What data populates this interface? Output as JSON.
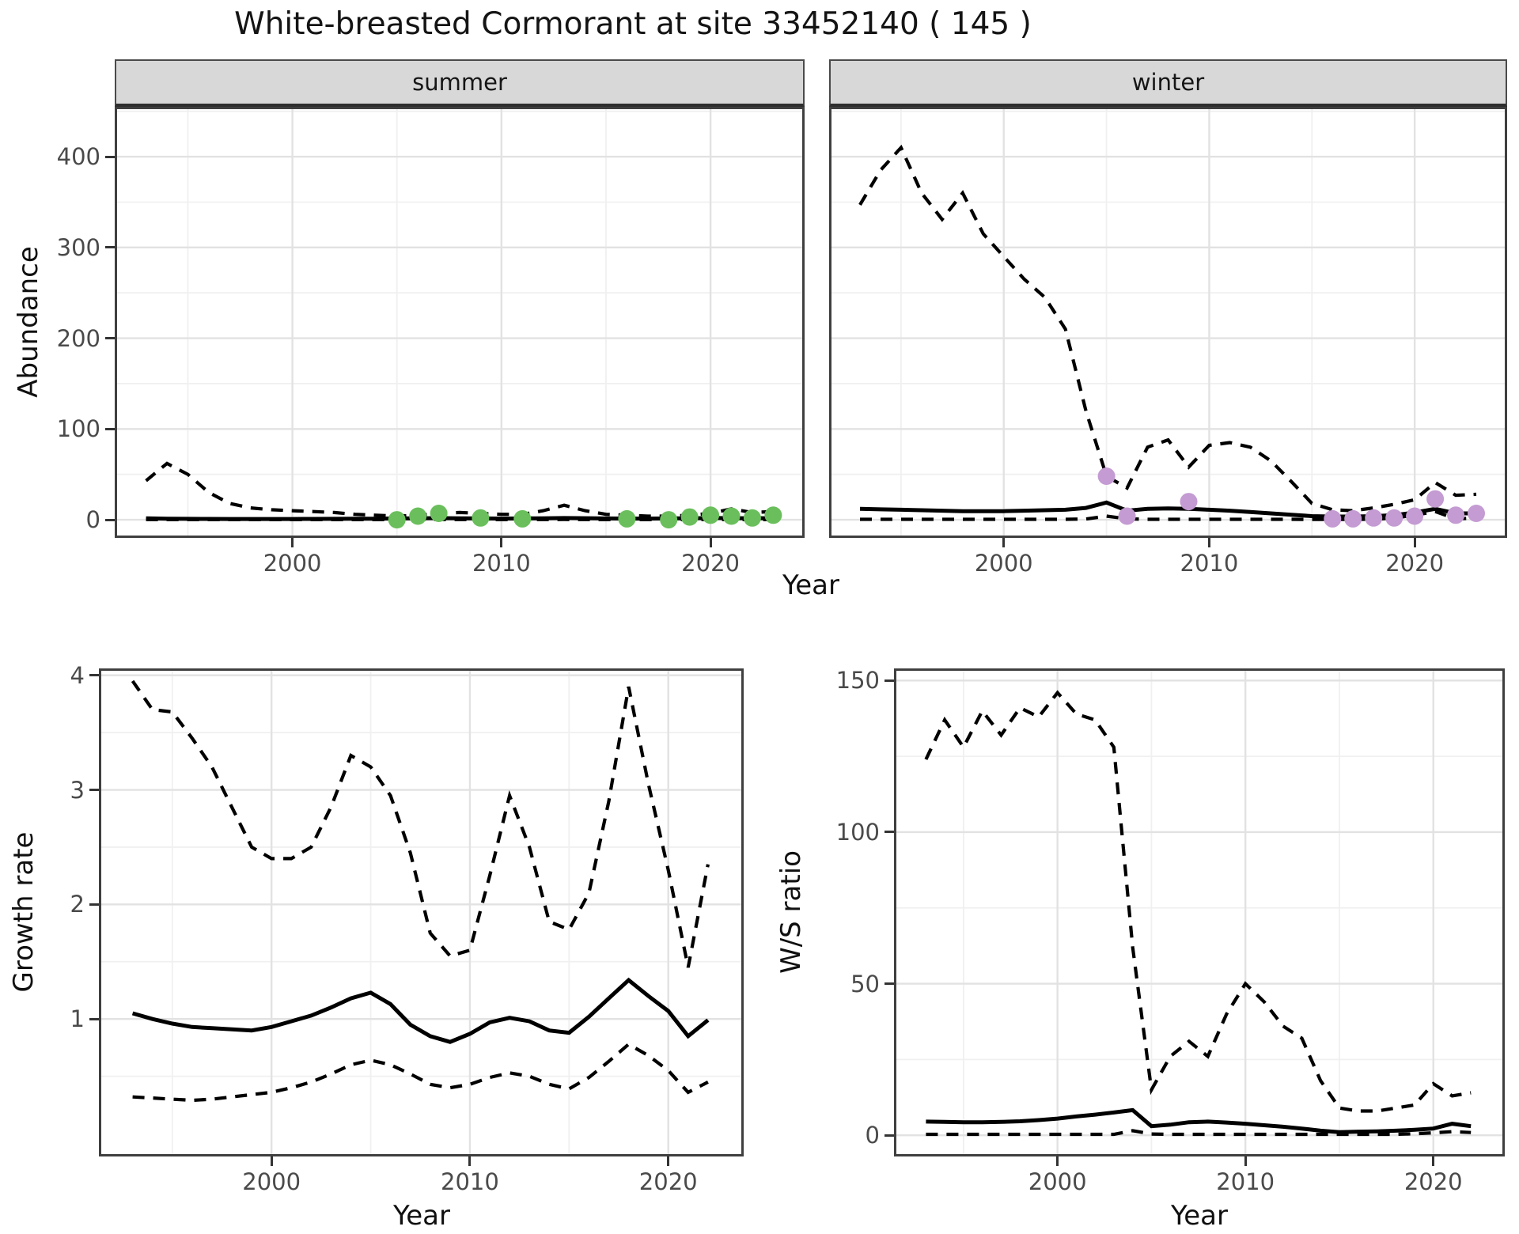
{
  "title": "White-breasted Cormorant at site 33452140 ( 145 )",
  "colors": {
    "summer_points": "#6abf5c",
    "winter_points": "#c49bd2",
    "line": "#000000",
    "strip_bg": "#d8d8d8",
    "grid_major": "#e2e2e2",
    "grid_minor": "#f0f0f0",
    "panel_border": "#3f3f3f",
    "tick_text": "#4a4a4a",
    "title_text": "#141414"
  },
  "chart_data": [
    {
      "id": "abundance",
      "type": "line",
      "title": "White-breasted Cormorant at site 33452140 ( 145 )",
      "xlabel": "Year",
      "ylabel": "Abundance",
      "legend_position": "none",
      "grid": true,
      "xlim": [
        1991.5,
        2024.5
      ],
      "ylim": [
        -20,
        455
      ],
      "x_ticks": [
        2000,
        2010,
        2020
      ],
      "x_minor": [
        1995,
        2005,
        2015
      ],
      "y_ticks": [
        0,
        100,
        200,
        300,
        400
      ],
      "y_minor": [
        50,
        150,
        250,
        350,
        450
      ],
      "years": [
        1993,
        1994,
        1995,
        1996,
        1997,
        1998,
        1999,
        2000,
        2001,
        2002,
        2003,
        2004,
        2005,
        2006,
        2007,
        2008,
        2009,
        2010,
        2011,
        2012,
        2013,
        2014,
        2015,
        2016,
        2017,
        2018,
        2019,
        2020,
        2021,
        2022,
        2023
      ],
      "facets": [
        {
          "label": "summer",
          "point_color": "#6abf5c",
          "series": {
            "upper_ci": [
              43,
              62,
              50,
              30,
              18,
              13,
              11,
              10,
              9,
              8,
              6,
              5,
              4,
              5,
              7,
              8,
              7,
              6,
              6,
              10,
              16,
              10,
              6,
              5,
              4,
              4,
              5,
              7,
              12,
              8,
              9
            ],
            "median": [
              1.5,
              1.2,
              1.0,
              0.9,
              0.8,
              0.8,
              0.8,
              0.8,
              0.9,
              1.0,
              1.1,
              1.2,
              1.4,
              1.6,
              1.8,
              1.6,
              1.4,
              1.3,
              1.4,
              1.6,
              1.9,
              1.7,
              1.4,
              1.3,
              1.3,
              1.4,
              1.6,
              1.9,
              1.8,
              1.6,
              1.8
            ],
            "lower_ci": [
              0.2,
              0.15,
              0.1,
              0.1,
              0.1,
              0.1,
              0.1,
              0.1,
              0.1,
              0.1,
              0.1,
              0.1,
              0.1,
              0.15,
              0.2,
              0.2,
              0.15,
              0.1,
              0.1,
              0.2,
              0.3,
              0.2,
              0.15,
              0.1,
              0.1,
              0.1,
              0.15,
              0.2,
              0.2,
              0.15,
              0.2
            ],
            "observed": {
              "x": [
                2005,
                2006,
                2007,
                2009,
                2011,
                2016,
                2018,
                2019,
                2020,
                2021,
                2022,
                2023
              ],
              "y": [
                0,
                4,
                7,
                2,
                1,
                1,
                0,
                3,
                5,
                4,
                2,
                5
              ]
            }
          }
        },
        {
          "label": "winter",
          "point_color": "#c49bd2",
          "series": {
            "upper_ci": [
              347,
              385,
              410,
              360,
              331,
              360,
              315,
              290,
              265,
              245,
              210,
              120,
              48,
              35,
              80,
              88,
              58,
              82,
              85,
              80,
              65,
              42,
              18,
              11,
              10,
              13,
              17,
              22,
              41,
              27,
              28
            ],
            "median": [
              12,
              11.5,
              11,
              10.5,
              10,
              9.5,
              9.5,
              9.5,
              10,
              10.5,
              11,
              13,
              19,
              10,
              12,
              12.5,
              12,
              11,
              10,
              8.5,
              7,
              5.5,
              4,
              3.5,
              3.5,
              4,
              5,
              8,
              12,
              7,
              7
            ],
            "lower_ci": [
              0.5,
              0.5,
              0.5,
              0.5,
              0.5,
              0.5,
              0.5,
              0.5,
              0.5,
              0.5,
              0.5,
              0.8,
              4,
              1,
              0.5,
              0.5,
              0.5,
              0.5,
              0.5,
              0.5,
              0.5,
              0.5,
              0.3,
              0.3,
              0.3,
              0.5,
              2,
              5,
              9,
              1,
              2
            ],
            "observed": {
              "x": [
                2005,
                2006,
                2009,
                2016,
                2017,
                2018,
                2019,
                2020,
                2021,
                2022,
                2023
              ],
              "y": [
                48,
                4,
                20,
                1,
                1,
                2,
                2,
                4,
                23,
                5,
                7
              ]
            }
          }
        }
      ]
    },
    {
      "id": "growth_rate",
      "type": "line",
      "xlabel": "Year",
      "ylabel": "Growth rate",
      "legend_position": "none",
      "grid": true,
      "xlim": [
        1991.3,
        2023.8
      ],
      "ylim": [
        -0.2,
        4.06
      ],
      "x_ticks": [
        2000,
        2010,
        2020
      ],
      "x_minor": [
        1995,
        2005,
        2015
      ],
      "y_ticks": [
        1,
        2,
        3,
        4
      ],
      "y_minor": [
        0.5,
        1.5,
        2.5,
        3.5
      ],
      "years": [
        1993,
        1994,
        1995,
        1996,
        1997,
        1998,
        1999,
        2000,
        2001,
        2002,
        2003,
        2004,
        2005,
        2006,
        2007,
        2008,
        2009,
        2010,
        2011,
        2012,
        2013,
        2014,
        2015,
        2016,
        2017,
        2018,
        2019,
        2020,
        2021,
        2022
      ],
      "series": {
        "upper_ci": [
          3.95,
          3.7,
          3.68,
          3.45,
          3.2,
          2.85,
          2.5,
          2.4,
          2.4,
          2.5,
          2.85,
          3.3,
          3.2,
          2.95,
          2.45,
          1.75,
          1.55,
          1.6,
          2.25,
          2.95,
          2.5,
          1.85,
          1.78,
          2.1,
          2.9,
          3.9,
          3.05,
          2.3,
          1.45,
          2.35
        ],
        "median": [
          1.05,
          1.0,
          0.96,
          0.93,
          0.92,
          0.91,
          0.9,
          0.93,
          0.98,
          1.03,
          1.1,
          1.18,
          1.23,
          1.13,
          0.95,
          0.85,
          0.8,
          0.87,
          0.97,
          1.01,
          0.98,
          0.9,
          0.88,
          1.02,
          1.18,
          1.34,
          1.2,
          1.07,
          0.85,
          0.99
        ],
        "lower_ci": [
          0.32,
          0.31,
          0.3,
          0.29,
          0.3,
          0.32,
          0.34,
          0.36,
          0.4,
          0.45,
          0.52,
          0.6,
          0.64,
          0.6,
          0.52,
          0.43,
          0.4,
          0.43,
          0.49,
          0.53,
          0.5,
          0.43,
          0.39,
          0.49,
          0.63,
          0.78,
          0.68,
          0.55,
          0.36,
          0.45
        ]
      }
    },
    {
      "id": "ws_ratio",
      "type": "line",
      "xlabel": "Year",
      "ylabel": "W/S ratio",
      "legend_position": "none",
      "grid": true,
      "xlim": [
        1991.3,
        2023.8
      ],
      "ylim": [
        -7,
        154
      ],
      "x_ticks": [
        2000,
        2010,
        2020
      ],
      "x_minor": [
        1995,
        2005,
        2015
      ],
      "y_ticks": [
        0,
        50,
        100,
        150
      ],
      "y_minor": [
        25,
        75,
        125
      ],
      "years": [
        1993,
        1994,
        1995,
        1996,
        1997,
        1998,
        1999,
        2000,
        2001,
        2002,
        2003,
        2004,
        2005,
        2006,
        2007,
        2008,
        2009,
        2010,
        2011,
        2012,
        2013,
        2014,
        2015,
        2016,
        2017,
        2018,
        2019,
        2020,
        2021,
        2022
      ],
      "series": {
        "upper_ci": [
          124,
          137,
          128,
          140,
          132,
          141,
          138,
          146,
          139,
          137,
          128,
          62,
          15,
          26,
          31,
          26,
          40,
          50,
          44,
          36,
          32,
          18,
          9,
          8,
          8,
          9,
          10,
          17,
          13,
          14
        ],
        "median": [
          4.5,
          4.4,
          4.3,
          4.3,
          4.4,
          4.6,
          5.0,
          5.5,
          6.2,
          6.8,
          7.5,
          8.3,
          3.0,
          3.5,
          4.3,
          4.5,
          4.2,
          3.8,
          3.3,
          2.8,
          2.2,
          1.5,
          1.0,
          1.2,
          1.3,
          1.5,
          1.8,
          2.2,
          3.8,
          3.0
        ],
        "lower_ci": [
          0.3,
          0.3,
          0.3,
          0.3,
          0.3,
          0.3,
          0.3,
          0.3,
          0.3,
          0.3,
          0.3,
          1.5,
          0.4,
          0.3,
          0.3,
          0.3,
          0.3,
          0.3,
          0.3,
          0.3,
          0.3,
          0.3,
          0.3,
          0.3,
          0.3,
          0.3,
          0.5,
          0.8,
          1.2,
          0.9
        ]
      }
    }
  ]
}
